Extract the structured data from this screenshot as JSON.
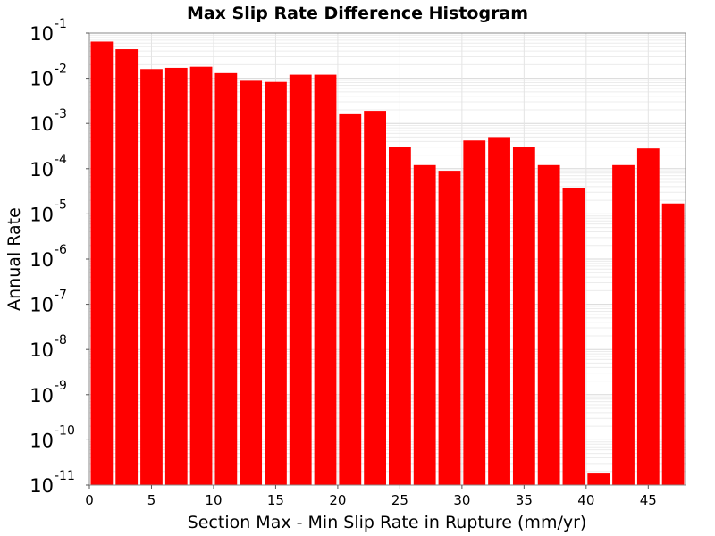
{
  "chart_data": {
    "type": "bar",
    "title": "Max Slip Rate Difference Histogram",
    "xlabel": "Section Max - Min Slip Rate in Rupture (mm/yr)",
    "ylabel": "Annual Rate",
    "y_scale": "log",
    "xlim": [
      0,
      48
    ],
    "ylim": [
      1e-11,
      0.1
    ],
    "bin_width": 2,
    "grid": true,
    "bar_color": "#ff0000",
    "x_ticks": [
      0,
      5,
      10,
      15,
      20,
      25,
      30,
      35,
      40,
      45
    ],
    "y_ticks": [
      {
        "base": "10",
        "exp": "-1",
        "value": 0.1
      },
      {
        "base": "10",
        "exp": "-2",
        "value": 0.01
      },
      {
        "base": "10",
        "exp": "-3",
        "value": 0.001
      },
      {
        "base": "10",
        "exp": "-4",
        "value": 0.0001
      },
      {
        "base": "10",
        "exp": "-5",
        "value": 1e-05
      },
      {
        "base": "10",
        "exp": "-6",
        "value": 1e-06
      },
      {
        "base": "10",
        "exp": "-7",
        "value": 1e-07
      },
      {
        "base": "10",
        "exp": "-8",
        "value": 1e-08
      },
      {
        "base": "10",
        "exp": "-9",
        "value": 1e-09
      },
      {
        "base": "10",
        "exp": "-10",
        "value": 1e-10
      },
      {
        "base": "10",
        "exp": "-11",
        "value": 1e-11
      }
    ],
    "bins": [
      {
        "x": 0,
        "y": 0.065
      },
      {
        "x": 2,
        "y": 0.044
      },
      {
        "x": 4,
        "y": 0.016
      },
      {
        "x": 6,
        "y": 0.017
      },
      {
        "x": 8,
        "y": 0.018
      },
      {
        "x": 10,
        "y": 0.013
      },
      {
        "x": 12,
        "y": 0.0088
      },
      {
        "x": 14,
        "y": 0.0083
      },
      {
        "x": 16,
        "y": 0.012
      },
      {
        "x": 18,
        "y": 0.012
      },
      {
        "x": 20,
        "y": 0.0016
      },
      {
        "x": 22,
        "y": 0.0019
      },
      {
        "x": 24,
        "y": 0.0003
      },
      {
        "x": 26,
        "y": 0.00012
      },
      {
        "x": 28,
        "y": 9e-05
      },
      {
        "x": 30,
        "y": 0.00042
      },
      {
        "x": 32,
        "y": 0.0005
      },
      {
        "x": 34,
        "y": 0.0003
      },
      {
        "x": 36,
        "y": 0.00012
      },
      {
        "x": 38,
        "y": 3.7e-05
      },
      {
        "x": 40,
        "y": 1.8e-11
      },
      {
        "x": 42,
        "y": 0.00012
      },
      {
        "x": 44,
        "y": 0.00028
      },
      {
        "x": 46,
        "y": 1.7e-05
      }
    ]
  }
}
